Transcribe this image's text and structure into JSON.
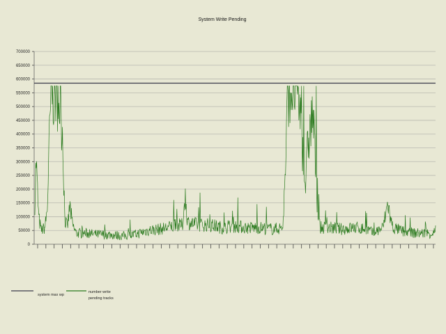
{
  "chart_data": {
    "type": "line",
    "title": "System Write Pending",
    "xlabel": "",
    "ylabel": "",
    "ylim": [
      0,
      700000
    ],
    "yticks": [
      0,
      50000,
      100000,
      150000,
      200000,
      250000,
      300000,
      350000,
      400000,
      450000,
      500000,
      550000,
      600000,
      650000,
      700000
    ],
    "ytick_labels": [
      "0",
      "50000",
      "100000",
      "150000",
      "200000",
      "250000",
      "300000",
      "350000",
      "400000",
      "450000",
      "500000",
      "550000",
      "600000",
      "650000",
      "700000"
    ],
    "grid": true,
    "legend_position": "bottom-left",
    "x_tick_count": 49,
    "series": [
      {
        "name": "system max wp",
        "color": "#3a3a4a",
        "constant": 585000
      },
      {
        "name_lines": [
          "number write",
          "pending tracks"
        ],
        "color": "#2a7a1e",
        "segments": [
          [
            0,
            150000
          ],
          [
            1,
            310000
          ],
          [
            3,
            100000
          ],
          [
            5,
            50000
          ],
          [
            8,
            60000
          ],
          [
            10,
            130000
          ],
          [
            11,
            300000
          ],
          [
            13,
            560000
          ],
          [
            15,
            545000
          ],
          [
            18,
            540000
          ],
          [
            20,
            500000
          ],
          [
            22,
            420000
          ],
          [
            23,
            250000
          ],
          [
            24,
            90000
          ],
          [
            26,
            60000
          ],
          [
            28,
            140000
          ],
          [
            30,
            70000
          ],
          [
            33,
            40000
          ],
          [
            40,
            40000
          ],
          [
            50,
            35000
          ],
          [
            60,
            35000
          ],
          [
            70,
            30000
          ],
          [
            80,
            35000
          ],
          [
            90,
            50000
          ],
          [
            100,
            55000
          ],
          [
            110,
            65000
          ],
          [
            118,
            70000
          ],
          [
            120,
            180000
          ],
          [
            122,
            80000
          ],
          [
            130,
            70000
          ],
          [
            140,
            70000
          ],
          [
            150,
            60000
          ],
          [
            160,
            65000
          ],
          [
            170,
            60000
          ],
          [
            180,
            60000
          ],
          [
            190,
            55000
          ],
          [
            198,
            60000
          ],
          [
            200,
            250000
          ],
          [
            202,
            560000
          ],
          [
            206,
            570000
          ],
          [
            210,
            565000
          ],
          [
            212,
            480000
          ],
          [
            214,
            330000
          ],
          [
            216,
            210000
          ],
          [
            218,
            360000
          ],
          [
            220,
            420000
          ],
          [
            222,
            480000
          ],
          [
            224,
            300000
          ],
          [
            226,
            100000
          ],
          [
            228,
            60000
          ],
          [
            235,
            60000
          ],
          [
            245,
            55000
          ],
          [
            255,
            60000
          ],
          [
            265,
            55000
          ],
          [
            270,
            40000
          ],
          [
            278,
            60000
          ],
          [
            282,
            150000
          ],
          [
            284,
            90000
          ],
          [
            286,
            60000
          ],
          [
            295,
            45000
          ],
          [
            305,
            40000
          ],
          [
            318,
            40000
          ],
          [
            320,
            50000
          ]
        ]
      }
    ]
  }
}
